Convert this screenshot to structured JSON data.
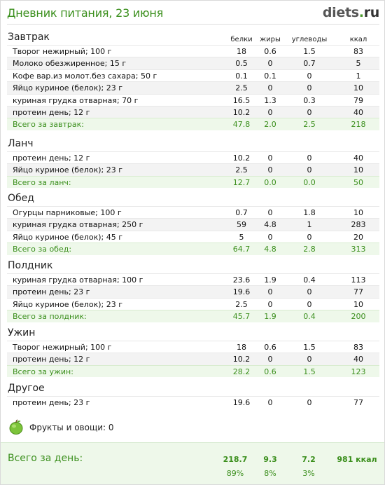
{
  "header": {
    "title": "Дневник питания, 23 июня",
    "logo_main": "diets",
    "logo_dot": ".",
    "logo_tld": "ru"
  },
  "columns": {
    "protein": "белки",
    "fat": "жиры",
    "carbs": "углеводы",
    "kcal": "ккал"
  },
  "meals": [
    {
      "name": "Завтрак",
      "items": [
        [
          "Творог нежирный; 100 г",
          "18",
          "0.6",
          "1.5",
          "83"
        ],
        [
          "Молоко обезжиренное; 15 г",
          "0.5",
          "0",
          "0.7",
          "5"
        ],
        [
          "Кофе вар.из молот.без сахара; 50 г",
          "0.1",
          "0.1",
          "0",
          "1"
        ],
        [
          "Яйцо куриное (белок); 23 г",
          "2.5",
          "0",
          "0",
          "10"
        ],
        [
          "куриная грудка отварная; 70 г",
          "16.5",
          "1.3",
          "0.3",
          "79"
        ],
        [
          "протеин день; 12 г",
          "10.2",
          "0",
          "0",
          "40"
        ]
      ],
      "total": [
        "Всего за завтрак:",
        "47.8",
        "2.0",
        "2.5",
        "218"
      ]
    },
    {
      "name": "Ланч",
      "items": [
        [
          "протеин день; 12 г",
          "10.2",
          "0",
          "0",
          "40"
        ],
        [
          "Яйцо куриное (белок); 23 г",
          "2.5",
          "0",
          "0",
          "10"
        ]
      ],
      "total": [
        "Всего за ланч:",
        "12.7",
        "0.0",
        "0.0",
        "50"
      ]
    },
    {
      "name": "Обед",
      "items": [
        [
          "Огурцы парниковые; 100 г",
          "0.7",
          "0",
          "1.8",
          "10"
        ],
        [
          "куриная грудка отварная; 250 г",
          "59",
          "4.8",
          "1",
          "283"
        ],
        [
          "Яйцо куриное (белок); 45 г",
          "5",
          "0",
          "0",
          "20"
        ]
      ],
      "total": [
        "Всего за обед:",
        "64.7",
        "4.8",
        "2.8",
        "313"
      ]
    },
    {
      "name": "Полдник",
      "items": [
        [
          "куриная грудка отварная; 100 г",
          "23.6",
          "1.9",
          "0.4",
          "113"
        ],
        [
          "протеин день; 23 г",
          "19.6",
          "0",
          "0",
          "77"
        ],
        [
          "Яйцо куриное (белок); 23 г",
          "2.5",
          "0",
          "0",
          "10"
        ]
      ],
      "total": [
        "Всего за полдник:",
        "45.7",
        "1.9",
        "0.4",
        "200"
      ]
    },
    {
      "name": "Ужин",
      "items": [
        [
          "Творог нежирный; 100 г",
          "18",
          "0.6",
          "1.5",
          "83"
        ],
        [
          "протеин день; 12 г",
          "10.2",
          "0",
          "0",
          "40"
        ]
      ],
      "total": [
        "Всего за ужин:",
        "28.2",
        "0.6",
        "1.5",
        "123"
      ]
    },
    {
      "name": "Другое",
      "items": [
        [
          "протеин день; 23 г",
          "19.6",
          "0",
          "0",
          "77"
        ]
      ],
      "total": null
    }
  ],
  "fruits": {
    "label": "Фрукты и овощи: 0",
    "icon": "apple-icon"
  },
  "day_total": {
    "label": "Всего за день:",
    "protein": "218.7",
    "fat": "9.3",
    "carbs": "7.2",
    "kcal": "981 ккал",
    "protein_pct": "89%",
    "fat_pct": "8%",
    "carbs_pct": "3%"
  },
  "colors": {
    "accent": "#3b8f1d",
    "total_bg": "#eef8ea"
  }
}
